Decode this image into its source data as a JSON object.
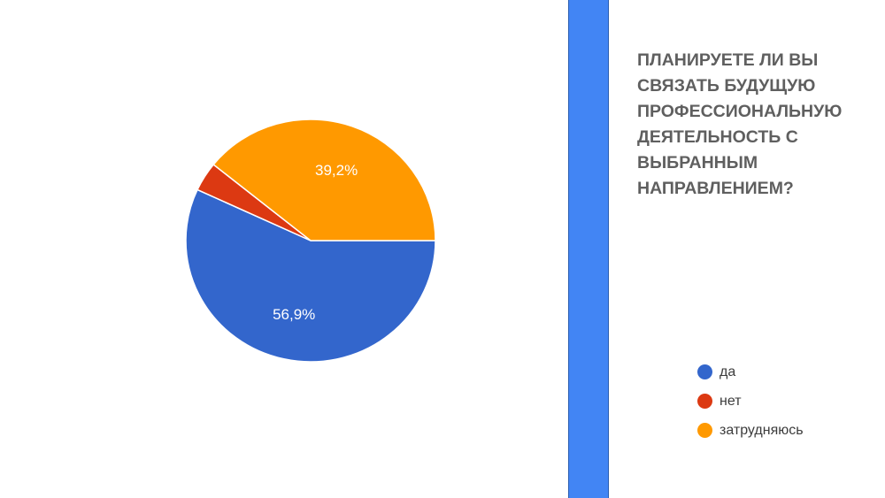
{
  "question": {
    "lines": [
      "ПЛАНИРУЕТЕ ЛИ ВЫ",
      "СВЯЗАТЬ БУДУЩУЮ",
      "ПРОФЕССИОНАЛЬНУЮ",
      "ДЕЯТЕЛЬНОСТЬ С",
      "ВЫБРАННЫМ",
      "НАПРАВЛЕНИЕМ?"
    ]
  },
  "chart_data": {
    "type": "pie",
    "title": "",
    "categories": [
      "да",
      "нет",
      "затрудняюсь"
    ],
    "values": [
      56.9,
      3.9,
      39.2
    ],
    "value_labels": [
      "56,9%",
      "",
      "39,2%"
    ],
    "colors": [
      "#3366cc",
      "#dc3912",
      "#ff9900"
    ],
    "legend_position": "bottom-right"
  },
  "colors": {
    "side_bar": "#4285f4",
    "question_text": "#5f5f5f"
  }
}
